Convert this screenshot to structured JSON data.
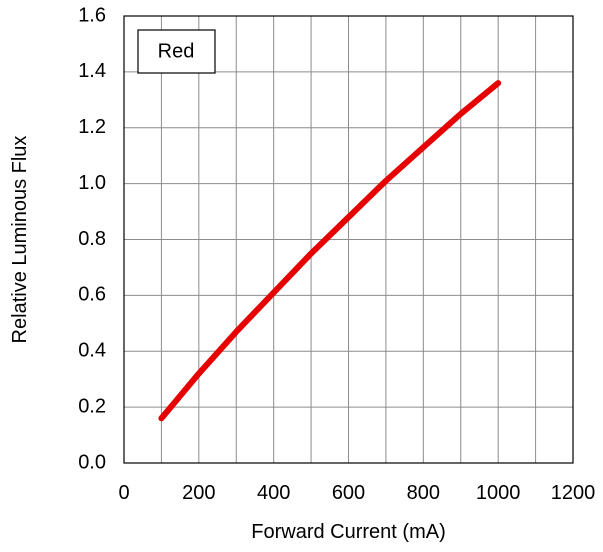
{
  "chart_data": {
    "type": "line",
    "title": "",
    "xlabel": "Forward Current (mA)",
    "ylabel": "Relative Luminous Flux",
    "xlim": [
      0,
      1200
    ],
    "ylim": [
      0.0,
      1.6
    ],
    "x_ticks": [
      "0",
      "200",
      "400",
      "600",
      "800",
      "1000",
      "1200"
    ],
    "y_ticks": [
      "0.0",
      "0.2",
      "0.4",
      "0.6",
      "0.8",
      "1.0",
      "1.2",
      "1.4",
      "1.6"
    ],
    "grid": true,
    "legend": {
      "label": "Red",
      "placement": "top-left"
    },
    "series": [
      {
        "color": "#e60000",
        "x": [
          100,
          200,
          300,
          400,
          500,
          600,
          700,
          800,
          900,
          1000
        ],
        "y": [
          0.16,
          0.32,
          0.47,
          0.61,
          0.75,
          0.88,
          1.01,
          1.13,
          1.25,
          1.36
        ]
      }
    ]
  }
}
